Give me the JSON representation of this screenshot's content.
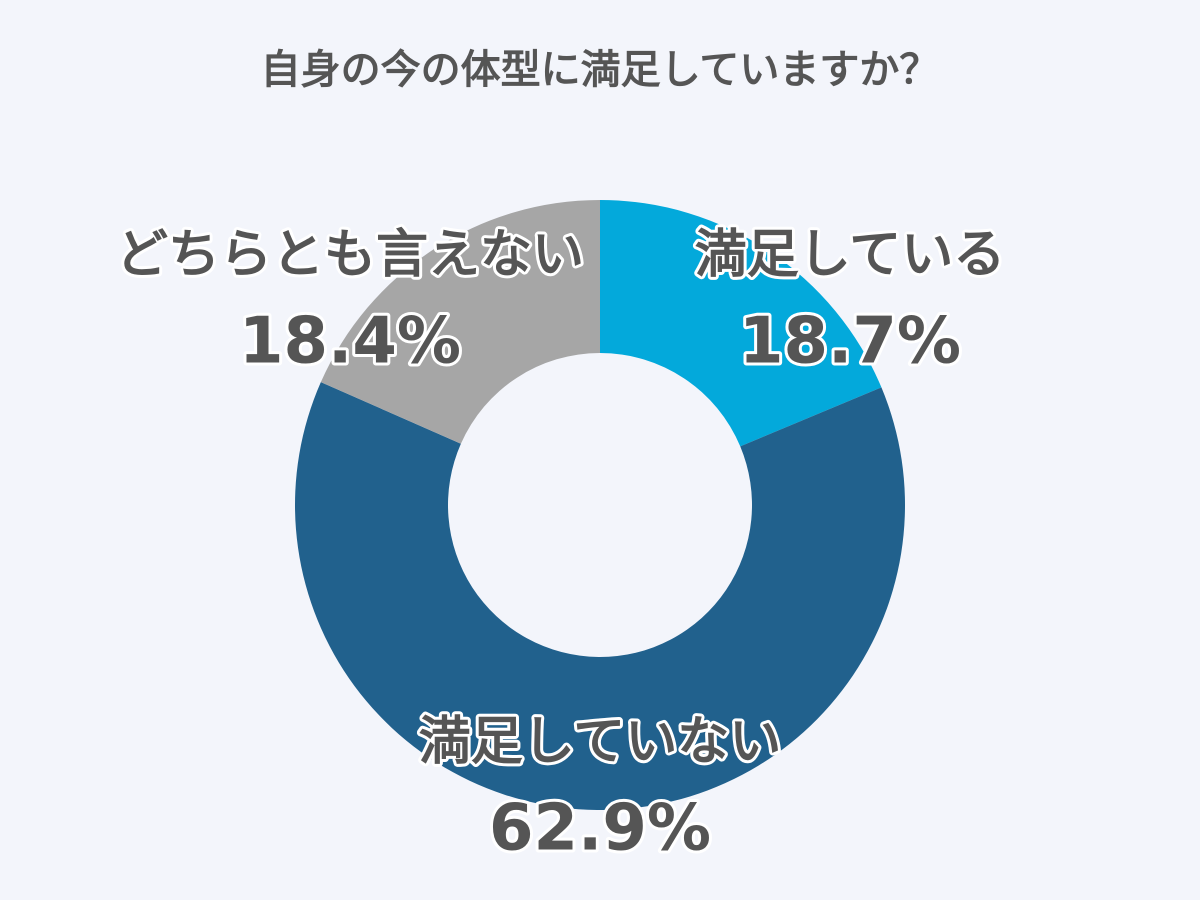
{
  "chart_data": {
    "type": "donut",
    "title": "自身の今の体型に満足していますか？",
    "categories": [
      "満足している",
      "満足していない",
      "どちらとも言えない"
    ],
    "values": [
      18.7,
      62.9,
      18.4
    ],
    "value_labels": [
      "18.7%",
      "62.9%",
      "18.4%"
    ],
    "colors": [
      "#03a9db",
      "#21618d",
      "#a6a6a6"
    ]
  }
}
